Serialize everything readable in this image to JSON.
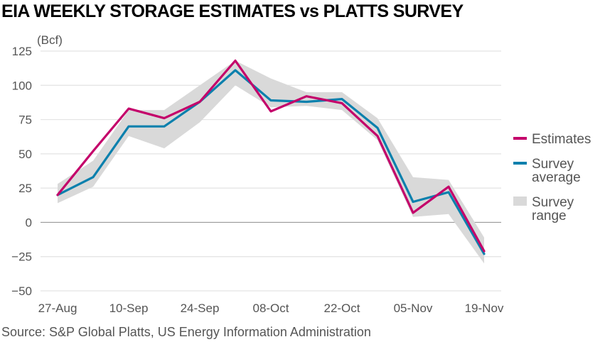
{
  "header": {
    "title": "EIA WEEKLY STORAGE ESTIMATES vs PLATTS SURVEY"
  },
  "footer": {
    "source": "Source: S&P Global Platts, US Energy Information Administration"
  },
  "chart_data": {
    "type": "line",
    "unit_label": "(Bcf)",
    "x": [
      "27-Aug",
      "03-Sep",
      "10-Sep",
      "17-Sep",
      "24-Sep",
      "01-Oct",
      "08-Oct",
      "15-Oct",
      "22-Oct",
      "29-Oct",
      "05-Nov",
      "12-Nov",
      "19-Nov"
    ],
    "x_tick_labels": [
      "27-Aug",
      "10-Sep",
      "24-Sep",
      "08-Oct",
      "22-Oct",
      "05-Nov",
      "19-Nov"
    ],
    "y_ticks": [
      125,
      100,
      75,
      50,
      25,
      0,
      -25,
      -50
    ],
    "ylim": [
      -50,
      125
    ],
    "grid": true,
    "legend_position": "right",
    "series": [
      {
        "name": "Estimates",
        "color": "#c4006a",
        "values": [
          20,
          52,
          83,
          76,
          88,
          118,
          81,
          92,
          87,
          63,
          7,
          26,
          -21
        ]
      },
      {
        "name": "Survey average",
        "color": "#0b80ad",
        "values": [
          20,
          33,
          70,
          70,
          88,
          111,
          89,
          88,
          90,
          69,
          15,
          22,
          -23
        ]
      },
      {
        "name": "Survey range",
        "color": "#d9d9d9",
        "type": "range",
        "low": [
          14,
          26,
          63,
          54,
          73,
          100,
          84,
          85,
          82,
          60,
          4,
          6,
          -30
        ],
        "high": [
          28,
          45,
          82,
          82,
          100,
          118,
          105,
          95,
          95,
          76,
          33,
          31,
          -11
        ]
      }
    ],
    "legend": [
      {
        "key": "estimates",
        "lines": [
          "Estimates"
        ]
      },
      {
        "key": "survey-average",
        "lines": [
          "Survey",
          "average"
        ]
      },
      {
        "key": "survey-range",
        "lines": [
          "Survey",
          "range"
        ]
      }
    ]
  }
}
